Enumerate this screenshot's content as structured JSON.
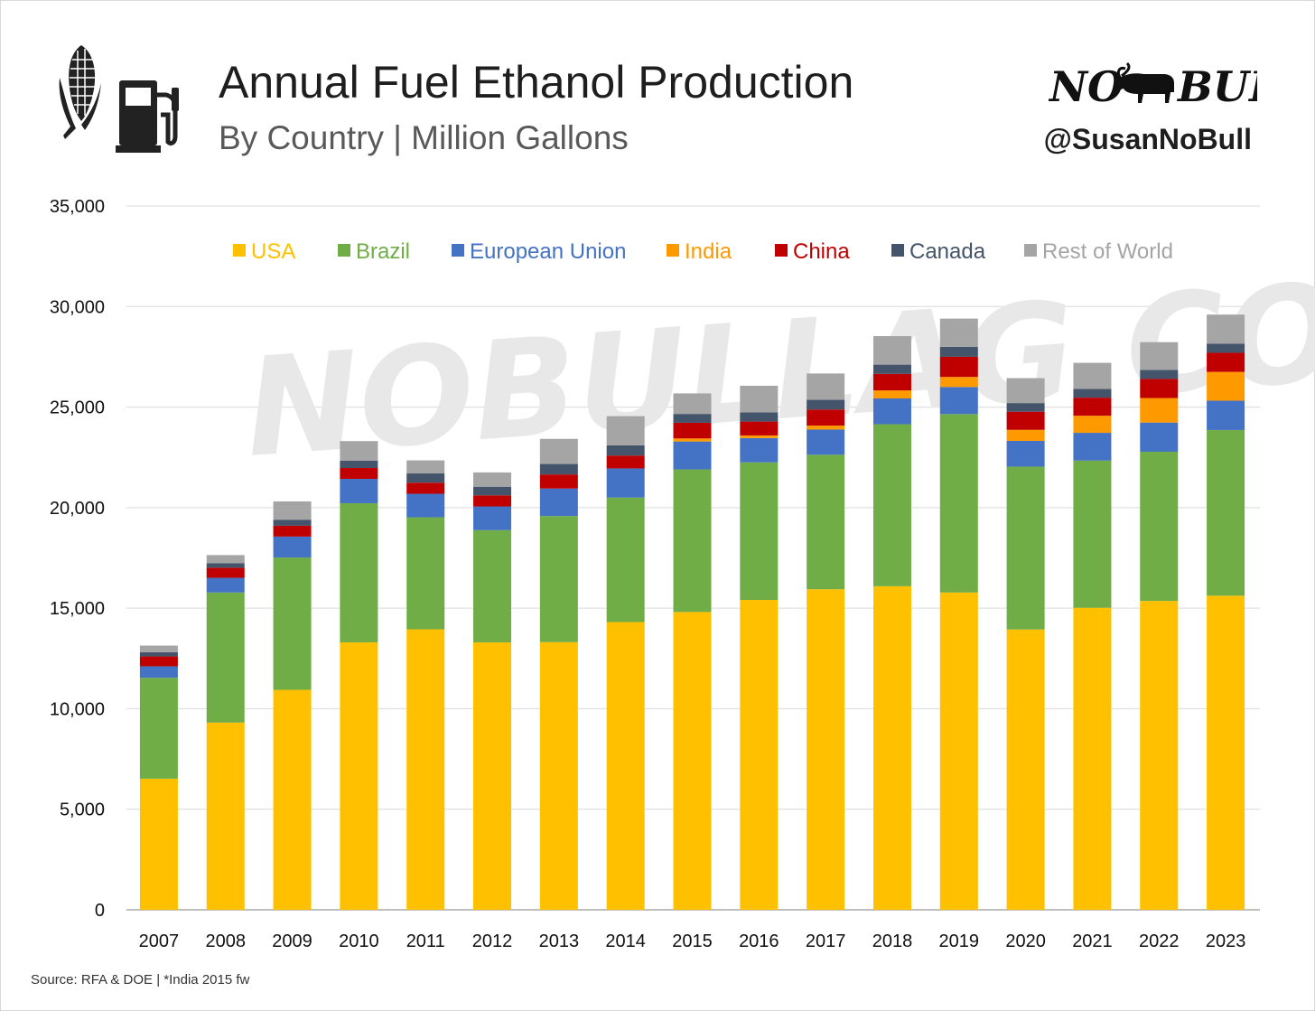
{
  "header": {
    "title": "Annual Fuel Ethanol Production",
    "subtitle": "By Country | Million Gallons",
    "brand": "NO BULL",
    "handle": "@SusanNoBull"
  },
  "icons": {
    "left": "corn-icon",
    "right": "fuel-pump-icon",
    "brand": "bull-icon"
  },
  "watermark": "NOBULLAG.COM",
  "footer": {
    "source": "Source: RFA & DOE | *India 2015 fw"
  },
  "colors": {
    "USA": "#ffc000",
    "Brazil": "#70ad47",
    "European Union": "#4472c4",
    "India": "#ff9900",
    "China": "#c00000",
    "Canada": "#44546a",
    "Rest of World": "#a5a5a5"
  },
  "chart_data": {
    "type": "bar",
    "stacked": true,
    "title": "Annual Fuel Ethanol Production",
    "subtitle": "By Country | Million Gallons",
    "categories": [
      "2007",
      "2008",
      "2009",
      "2010",
      "2011",
      "2012",
      "2013",
      "2014",
      "2015",
      "2016",
      "2017",
      "2018",
      "2019",
      "2020",
      "2021",
      "2022",
      "2023"
    ],
    "ylim": [
      0,
      35000
    ],
    "yticks": [
      0,
      5000,
      10000,
      15000,
      20000,
      25000,
      30000,
      35000
    ],
    "ytick_labels": [
      "0",
      "5,000",
      "10,000",
      "15,000",
      "20,000",
      "25,000",
      "30,000",
      "35,000"
    ],
    "grid": true,
    "legend_position": "top",
    "series": [
      {
        "name": "USA",
        "values": [
          6520,
          9310,
          10940,
          13300,
          13950,
          13300,
          13310,
          14310,
          14810,
          15410,
          15940,
          16090,
          15780,
          13940,
          15020,
          15360,
          15620
        ]
      },
      {
        "name": "Brazil",
        "values": [
          5020,
          6470,
          6580,
          6920,
          5570,
          5580,
          6270,
          6190,
          7090,
          6840,
          6690,
          8060,
          8870,
          8100,
          7320,
          7420,
          8240
        ]
      },
      {
        "name": "European Union",
        "values": [
          570,
          730,
          1040,
          1210,
          1170,
          1180,
          1370,
          1450,
          1390,
          1210,
          1250,
          1280,
          1350,
          1280,
          1380,
          1450,
          1460
        ]
      },
      {
        "name": "India",
        "values": [
          0,
          0,
          0,
          0,
          0,
          0,
          0,
          0,
          150,
          130,
          200,
          400,
          500,
          550,
          850,
          1220,
          1430
        ]
      },
      {
        "name": "China",
        "values": [
          490,
          500,
          540,
          540,
          550,
          550,
          700,
          640,
          780,
          690,
          800,
          820,
          1000,
          900,
          900,
          950,
          950
        ]
      },
      {
        "name": "Canada",
        "values": [
          210,
          230,
          300,
          360,
          460,
          430,
          520,
          510,
          440,
          460,
          480,
          460,
          500,
          430,
          430,
          450,
          450
        ]
      },
      {
        "name": "Rest of World",
        "values": [
          330,
          400,
          910,
          980,
          650,
          710,
          1250,
          1450,
          1020,
          1320,
          1310,
          1420,
          1400,
          1240,
          1300,
          1380,
          1450
        ]
      }
    ]
  }
}
